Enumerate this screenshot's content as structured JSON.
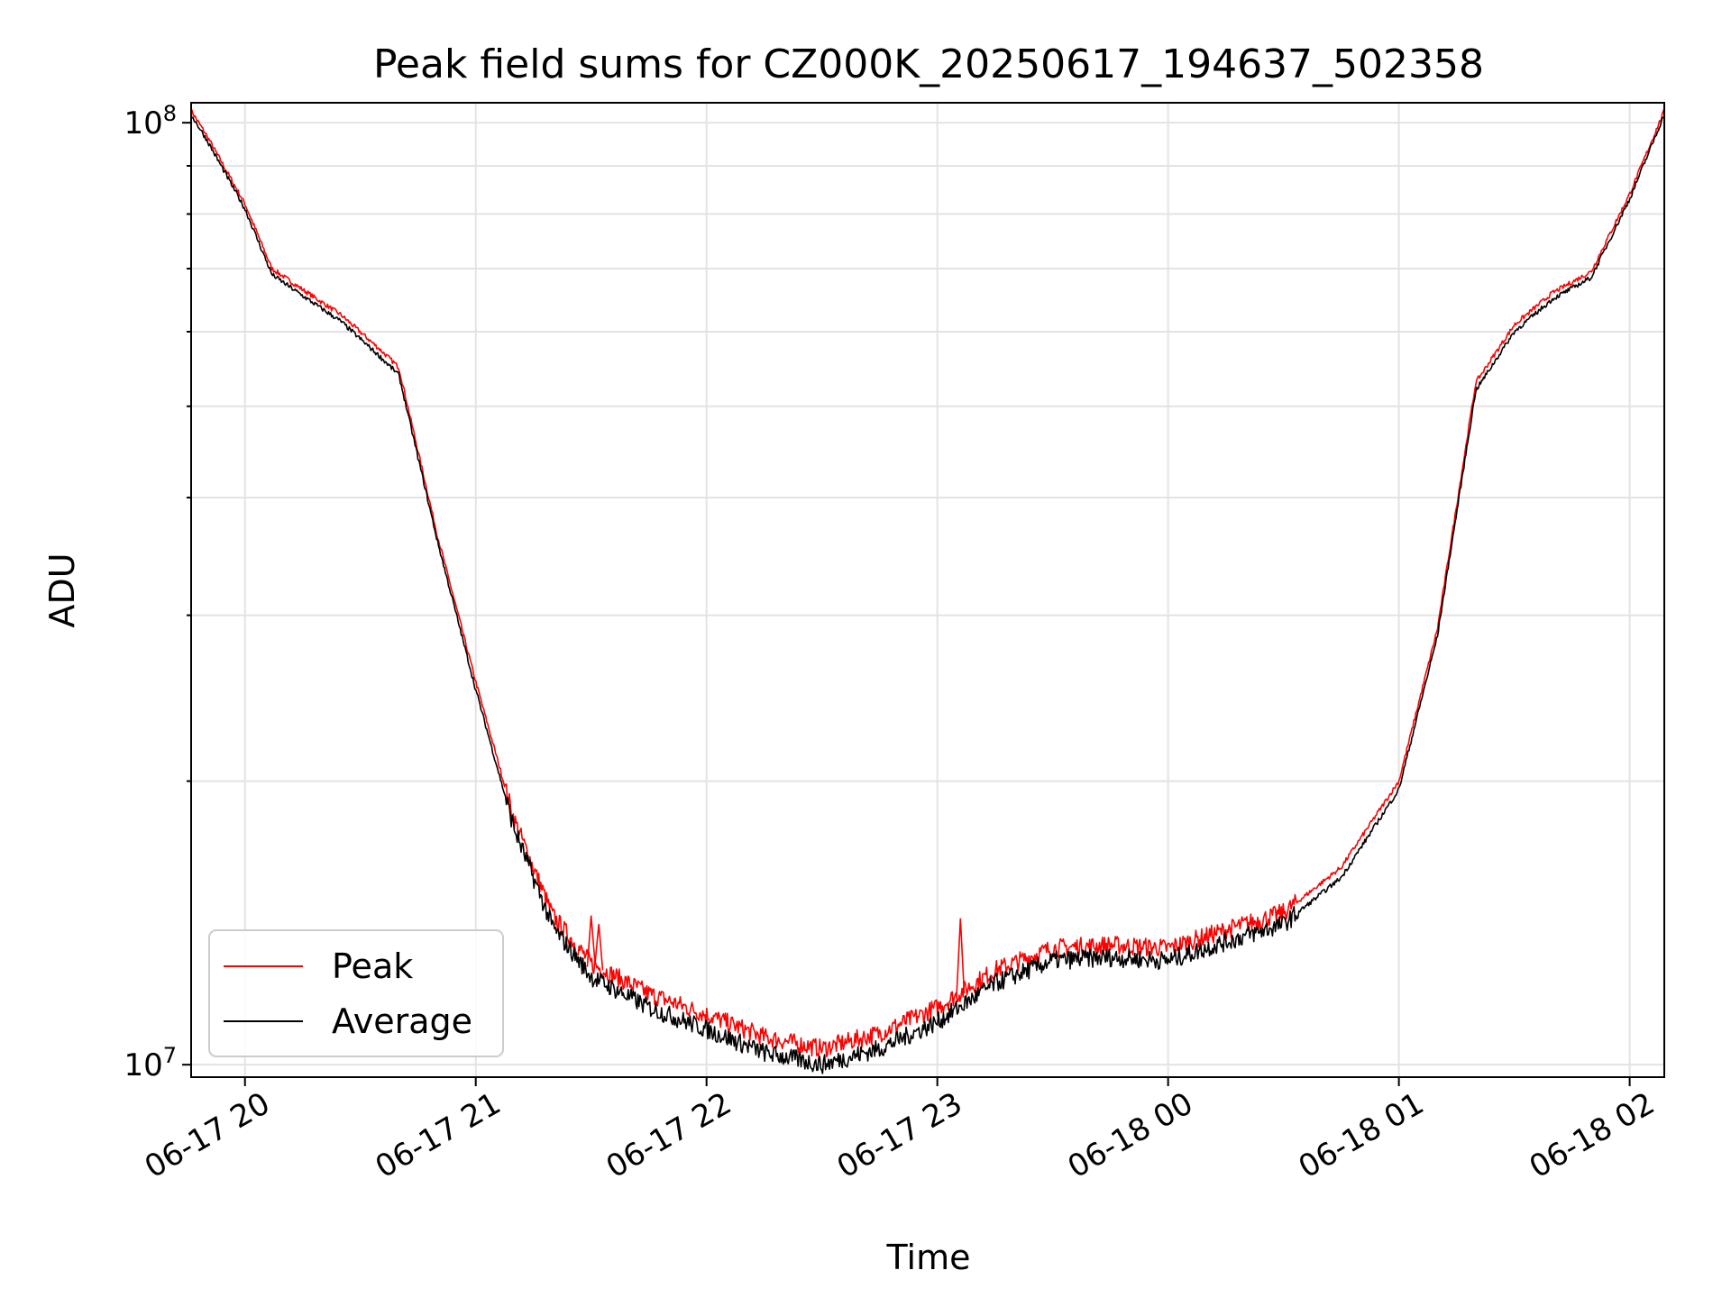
{
  "chart_data": {
    "type": "line",
    "title": "Peak field sums for CZ000K_20250617_194637_502358",
    "xlabel": "Time",
    "ylabel": "ADU",
    "yscale": "log",
    "grid": true,
    "legend_position": "lower-left",
    "xlim": [
      "2025-06-17 19:46",
      "2025-06-18 02:09"
    ],
    "ylim": [
      9700000,
      105000000
    ],
    "x_ticks": [
      "06-17 20",
      "06-17 21",
      "06-17 22",
      "06-17 23",
      "06-18 00",
      "06-18 01",
      "06-18 02"
    ],
    "y_ticks": [
      {
        "value": 10000000,
        "base": "10",
        "exp": "7"
      },
      {
        "value": 100000000,
        "base": "10",
        "exp": "8"
      }
    ],
    "series": [
      {
        "name": "Peak",
        "color": "#ff0000",
        "x": [
          "2025-06-17 19:46",
          "2025-06-17 19:50",
          "2025-06-17 20:00",
          "2025-06-17 20:07",
          "2025-06-17 20:15",
          "2025-06-17 20:25",
          "2025-06-17 20:35",
          "2025-06-17 20:40",
          "2025-06-17 20:50",
          "2025-06-17 21:00",
          "2025-06-17 21:10",
          "2025-06-17 21:20",
          "2025-06-17 21:30",
          "2025-06-17 21:45",
          "2025-06-17 22:00",
          "2025-06-17 22:15",
          "2025-06-17 22:30",
          "2025-06-17 22:45",
          "2025-06-17 23:00",
          "2025-06-17 23:15",
          "2025-06-17 23:30",
          "2025-06-17 23:45",
          "2025-06-18 00:00",
          "2025-06-18 00:15",
          "2025-06-18 00:30",
          "2025-06-18 00:45",
          "2025-06-18 01:00",
          "2025-06-18 01:10",
          "2025-06-18 01:20",
          "2025-06-18 01:30",
          "2025-06-18 01:40",
          "2025-06-18 01:50",
          "2025-06-18 02:00",
          "2025-06-18 02:09"
        ],
        "y": [
          103000000,
          97000000,
          82000000,
          70000000,
          66500000,
          62500000,
          57500000,
          55000000,
          36500000,
          25500000,
          18200000,
          14400000,
          12800000,
          11900000,
          11300000,
          10700000,
          10400000,
          10800000,
          11500000,
          12600000,
          13300000,
          13400000,
          13300000,
          13900000,
          14500000,
          16200000,
          20000000,
          29000000,
          53000000,
          61000000,
          66000000,
          69500000,
          84000000,
          103000000
        ]
      },
      {
        "name": "Average",
        "color": "#000000",
        "x": [
          "2025-06-17 19:46",
          "2025-06-17 19:50",
          "2025-06-17 20:00",
          "2025-06-17 20:07",
          "2025-06-17 20:15",
          "2025-06-17 20:25",
          "2025-06-17 20:35",
          "2025-06-17 20:40",
          "2025-06-17 20:50",
          "2025-06-17 21:00",
          "2025-06-17 21:10",
          "2025-06-17 21:20",
          "2025-06-17 21:30",
          "2025-06-17 21:45",
          "2025-06-17 22:00",
          "2025-06-17 22:15",
          "2025-06-17 22:30",
          "2025-06-17 22:45",
          "2025-06-17 23:00",
          "2025-06-17 23:15",
          "2025-06-17 23:30",
          "2025-06-17 23:45",
          "2025-06-18 00:00",
          "2025-06-18 00:15",
          "2025-06-18 00:30",
          "2025-06-18 00:45",
          "2025-06-18 01:00",
          "2025-06-18 01:10",
          "2025-06-18 01:20",
          "2025-06-18 01:30",
          "2025-06-18 01:40",
          "2025-06-18 01:50",
          "2025-06-18 02:00",
          "2025-06-18 02:09"
        ],
        "y": [
          102000000,
          96000000,
          81000000,
          69000000,
          65500000,
          61500000,
          56500000,
          54000000,
          36000000,
          25000000,
          17800000,
          14000000,
          12400000,
          11500000,
          10900000,
          10300000,
          10000000,
          10400000,
          11100000,
          12200000,
          12900000,
          13000000,
          12900000,
          13500000,
          14100000,
          15800000,
          19600000,
          28500000,
          52000000,
          60000000,
          65000000,
          68500000,
          83000000,
          102000000
        ]
      }
    ],
    "spikes": [
      {
        "series": "Peak",
        "x": [
          "2025-06-17 21:29",
          "2025-06-17 21:30",
          "2025-06-17 21:31",
          "2025-06-17 21:32",
          "2025-06-17 21:33"
        ],
        "y": [
          12700000,
          14400000,
          12800000,
          14100000,
          12600000
        ]
      },
      {
        "series": "Peak",
        "x": [
          "2025-06-17 23:05",
          "2025-06-17 23:06",
          "2025-06-17 23:07"
        ],
        "y": [
          11800000,
          14300000,
          11900000
        ]
      }
    ]
  }
}
